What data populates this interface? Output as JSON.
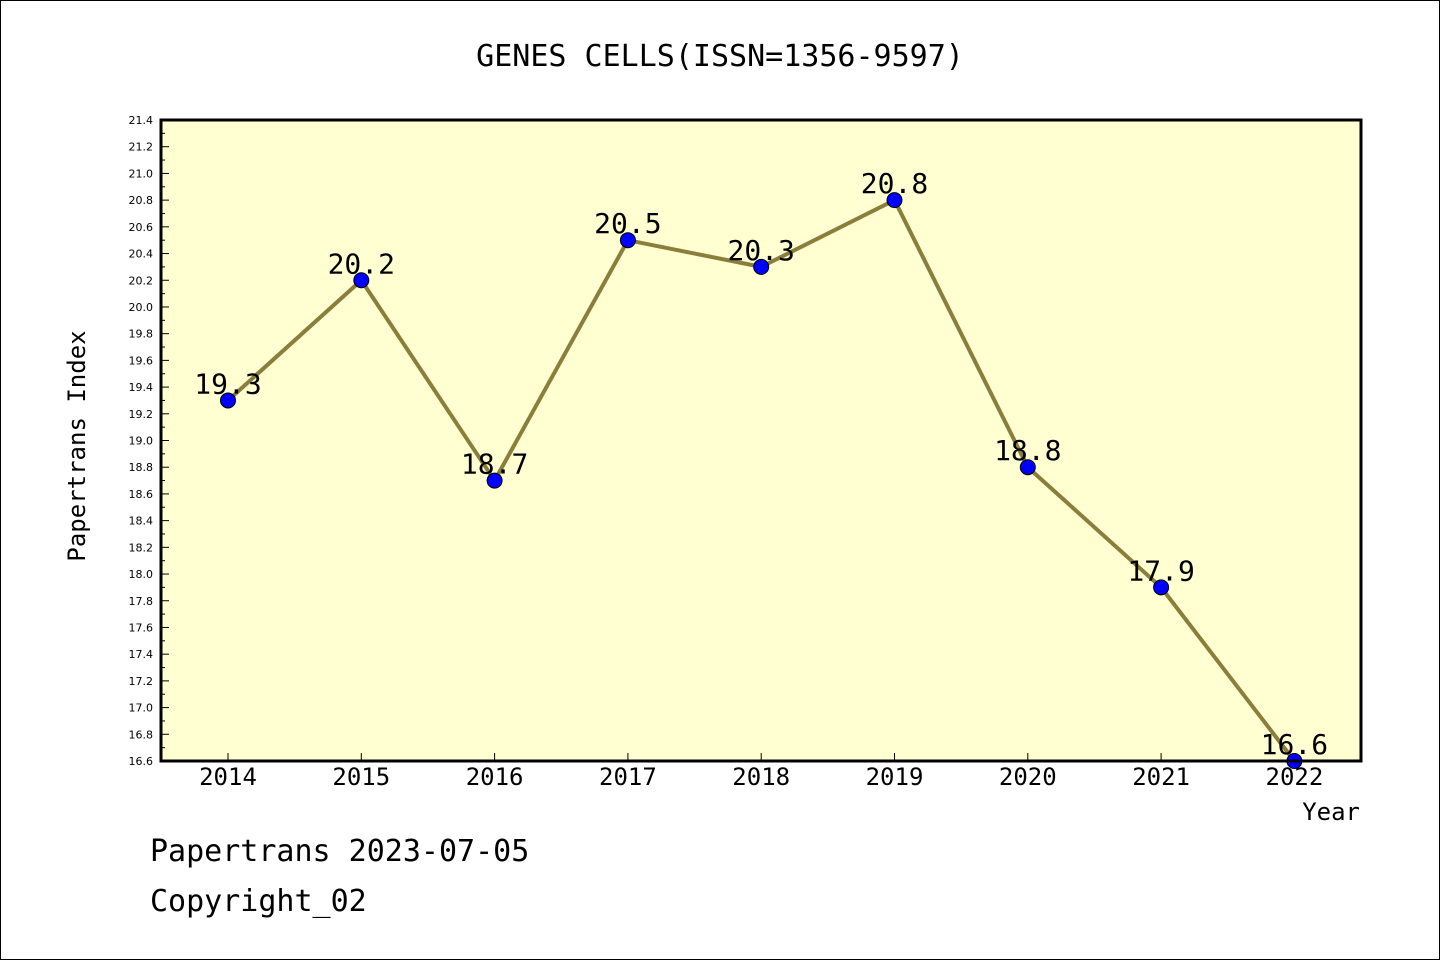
{
  "chart_data": {
    "type": "line",
    "title": "GENES CELLS(ISSN=1356-9597)",
    "xlabel": "Year",
    "ylabel": "Papertrans Index",
    "categories": [
      "2014",
      "2015",
      "2016",
      "2017",
      "2018",
      "2019",
      "2020",
      "2021",
      "2022"
    ],
    "values": [
      19.3,
      20.2,
      18.7,
      20.5,
      20.3,
      20.8,
      18.8,
      17.9,
      16.6
    ],
    "data_labels": [
      "19.3",
      "20.2",
      "18.7",
      "20.5",
      "20.3",
      "20.8",
      "18.8",
      "17.9",
      "16.6"
    ],
    "ylim": [
      16.6,
      21.4
    ],
    "yticks": [
      "16.6",
      "16.8",
      "17.0",
      "17.2",
      "17.4",
      "17.6",
      "17.8",
      "18.0",
      "18.2",
      "18.4",
      "18.6",
      "18.8",
      "19.0",
      "19.2",
      "19.4",
      "19.6",
      "19.8",
      "20.0",
      "20.2",
      "20.4",
      "20.6",
      "20.8",
      "21.0",
      "21.2",
      "21.4"
    ],
    "grid": false,
    "line_color": "#8b7d3a",
    "marker_color": "#0000ff",
    "plot_background": "#ffffd2"
  },
  "footer": {
    "line1": "Papertrans 2023-07-05",
    "line2": "Copyright_02"
  }
}
